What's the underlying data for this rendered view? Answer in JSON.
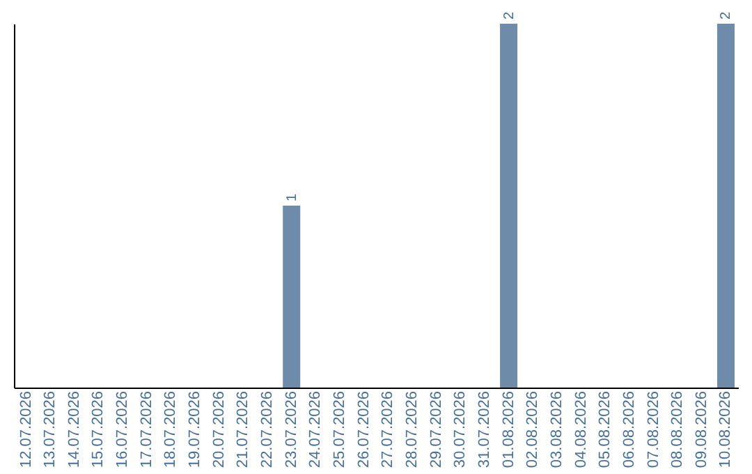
{
  "chart_data": {
    "type": "bar",
    "categories": [
      "12.07.2026",
      "13.07.2026",
      "14.07.2026",
      "15.07.2026",
      "16.07.2026",
      "17.07.2026",
      "18.07.2026",
      "19.07.2026",
      "20.07.2026",
      "21.07.2026",
      "22.07.2026",
      "23.07.2026",
      "24.07.2026",
      "25.07.2026",
      "26.07.2026",
      "27.07.2026",
      "28.07.2026",
      "29.07.2026",
      "30.07.2026",
      "31.07.2026",
      "01.08.2026",
      "02.08.2026",
      "03.08.2026",
      "04.08.2026",
      "05.08.2026",
      "06.08.2026",
      "07.08.2026",
      "08.08.2026",
      "09.08.2026",
      "10.08.2026"
    ],
    "values": [
      0,
      0,
      0,
      0,
      0,
      0,
      0,
      0,
      0,
      0,
      0,
      1,
      0,
      0,
      0,
      0,
      0,
      0,
      0,
      0,
      2,
      0,
      0,
      0,
      0,
      0,
      0,
      0,
      0,
      2
    ],
    "value_labels": [
      null,
      null,
      null,
      null,
      null,
      null,
      null,
      null,
      null,
      null,
      null,
      "1",
      null,
      null,
      null,
      null,
      null,
      null,
      null,
      null,
      "2",
      null,
      null,
      null,
      null,
      null,
      null,
      null,
      null,
      "2"
    ],
    "color": "#6e8caa",
    "grid": false,
    "tick_labels": "x"
  }
}
